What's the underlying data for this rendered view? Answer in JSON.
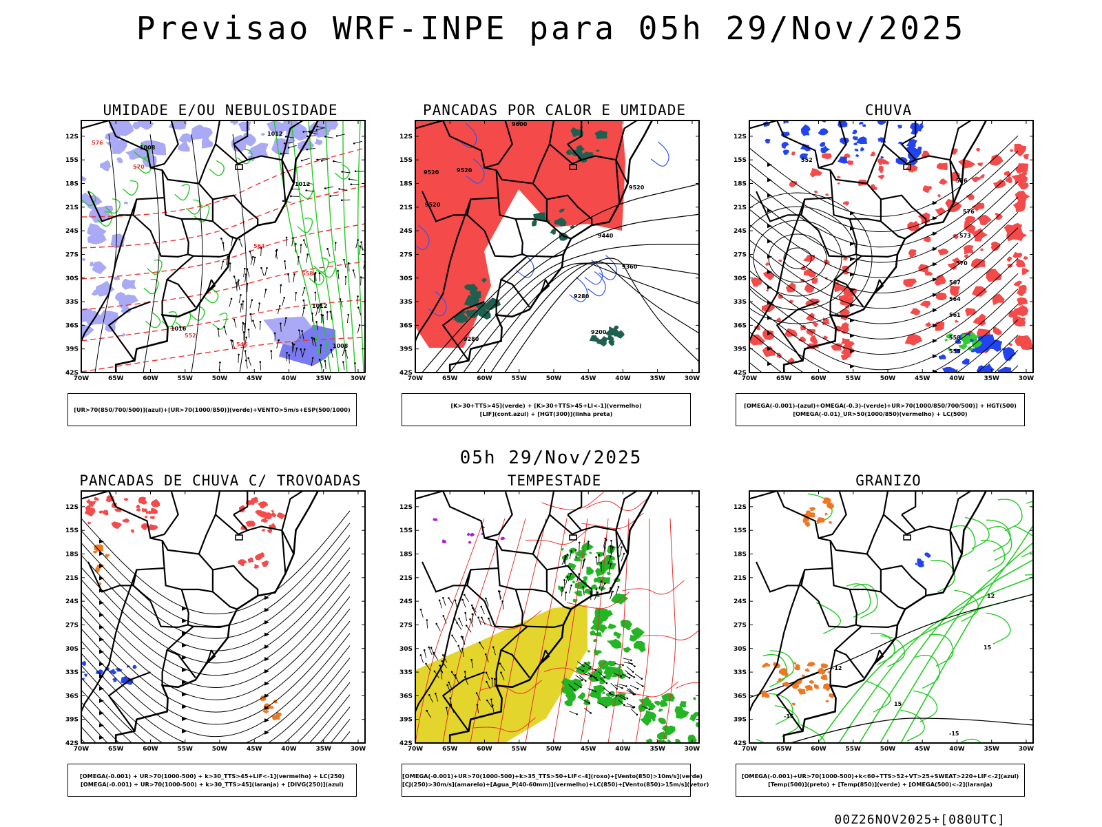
{
  "title": "Previsao WRF-INPE  para 05h 29/Nov/2025",
  "mid_title": "05h 29/Nov/2025",
  "run_label": "00Z26NOV2025+[080UTC]",
  "axes": {
    "lat_labels": [
      "12S",
      "15S",
      "18S",
      "21S",
      "24S",
      "27S",
      "30S",
      "33S",
      "36S",
      "39S",
      "42S"
    ],
    "lon_labels": [
      "70W",
      "65W",
      "60W",
      "55W",
      "50W",
      "45W",
      "40W",
      "35W",
      "30W"
    ]
  },
  "panels": [
    {
      "id": "umidade",
      "title": "UMIDADE E/OU NEBULOSIDADE",
      "legend": [
        "[UR>70(850/700/500)](azul)+[UR>70(1000/850)](verde)+VENTO>5m/s+ESP(500/1000)"
      ],
      "contour_labels": [
        "1008",
        "1012",
        "1012",
        "1012",
        "1016",
        "1008",
        "576",
        "570",
        "564",
        "558",
        "552",
        "546"
      ]
    },
    {
      "id": "pancadas-calor",
      "title": "PANCADAS POR CALOR E UMIDADE",
      "legend": [
        "[K>30+TTS>45](verde) + [K>30+TTS>45+LI<-1](vermelho)",
        "[LIF](cont.azul) + [HGT(300)](linha preta)"
      ],
      "contour_labels": [
        "9600",
        "9520",
        "9520",
        "9520",
        "9440",
        "9360",
        "9280",
        "9200",
        "9280",
        "9520"
      ]
    },
    {
      "id": "chuva",
      "title": "CHUVA",
      "legend": [
        "[OMEGA(-0.001)-(azul)+OMEGA(-0.3)-(verde)+UR>70(1000/850/700/500)] + HGT(500)",
        "[OMEGA(-0.01)_UR>50(1000/850)(vermelho) + LC(500)"
      ],
      "contour_labels": [
        "576",
        "576",
        "573",
        "570",
        "567",
        "564",
        "561",
        "558",
        "555",
        "552"
      ]
    },
    {
      "id": "pancadas-trovoadas",
      "title": "PANCADAS DE CHUVA C/ TROVOADAS",
      "legend": [
        "[OMEGA(-0.001) + UR>70(1000-500) + k>30_TTS>45+LIF<-1](vermelho) + LC(250)",
        "[OMEGA(-0.001) + UR>70(1000-500) + k>30_TTS>45](laranja) + [DIVG(250)](azul)"
      ],
      "contour_labels": []
    },
    {
      "id": "tempestade",
      "title": "TEMPESTADE",
      "legend": [
        "[OMEGA(-0.001)+UR>70(1000-500)+k>35_TTS>50+LIF<-4](roxo)+[Vento(850)>10m/s](verde)",
        "[CJ(250)>30m/s](amarelo)+[Agua_P(40-60mm)](vermelho)+LC(850)+[Vento(850)>15m/s](vetor)"
      ],
      "contour_labels": []
    },
    {
      "id": "granizo",
      "title": "GRANIZO",
      "legend": [
        "[OMEGA(-0.001)+UR>70(1000-500)+k<60+TTS>52+VT>25+SWEAT>220+LIF<-2](azul)",
        "[Temp(500)](preto) + [Temp(850)](verde) + [OMEGA(500)<-2](laranja)"
      ],
      "contour_labels": [
        "12",
        "15",
        "-12",
        "-15",
        "15",
        "-15"
      ]
    }
  ],
  "colors": {
    "frame": "#000000",
    "humidity_blue": "#a9a9f5",
    "humidity_green": "#22cc22",
    "thickness_red": "#ee3333",
    "lif_blue": "#3355ee",
    "storm_red": "#f54a4a",
    "storm_green": "#1f5f4f",
    "jet_yellow": "#e3d52b",
    "wind_green": "#23b523",
    "hail_orange": "#ee7722",
    "purple": "#aa22cc"
  }
}
